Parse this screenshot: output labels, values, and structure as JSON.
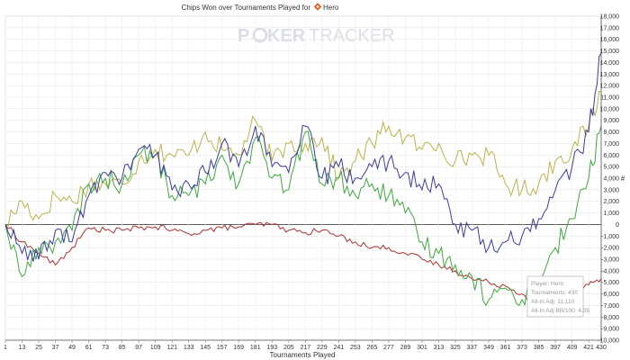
{
  "chart_data": {
    "type": "line",
    "title": "Chips Won over Tournaments Played for",
    "player_name": "Hero",
    "watermark": {
      "left": "P",
      "mid": "KER",
      "right": "TRACKER"
    },
    "xlabel": "Tournaments Played",
    "ylabel": "#",
    "xlim": [
      1,
      430
    ],
    "ylim": [
      -10000,
      18000
    ],
    "x_ticks": [
      1,
      13,
      25,
      37,
      49,
      61,
      73,
      85,
      97,
      109,
      121,
      133,
      145,
      157,
      169,
      181,
      193,
      205,
      217,
      229,
      241,
      253,
      265,
      277,
      289,
      301,
      313,
      325,
      337,
      349,
      361,
      373,
      385,
      397,
      409,
      421,
      430
    ],
    "y_ticks": [
      -10000,
      -9000,
      -8000,
      -7000,
      -6000,
      -5000,
      -4000,
      -3000,
      -2000,
      -1000,
      0,
      1000,
      2000,
      3000,
      4000,
      5000,
      6000,
      7000,
      8000,
      9000,
      10000,
      11000,
      12000,
      13000,
      14000,
      15000,
      16000,
      17000,
      18000
    ],
    "y_tick_labels": [
      "-10,000",
      "-9,000",
      "-8,000",
      "-7,000",
      "-6,000",
      "-5,000",
      "-4,000",
      "-3,000",
      "-2,000",
      "-1,000",
      "0",
      "1,000",
      "2,000",
      "3,000",
      "4,000",
      "5,000",
      "6,000",
      "7,000",
      "8,000",
      "9,000",
      "10,000",
      "11,000",
      "12,000",
      "13,000",
      "14,000",
      "15,000",
      "16,000",
      "17,000",
      "18,000"
    ],
    "grid": true,
    "series": [
      {
        "key": "blue",
        "color": "#3a3aa8",
        "x": [
          1,
          13,
          25,
          37,
          49,
          61,
          73,
          85,
          97,
          109,
          121,
          133,
          145,
          157,
          169,
          181,
          193,
          205,
          217,
          229,
          241,
          253,
          265,
          277,
          289,
          301,
          313,
          325,
          337,
          349,
          361,
          373,
          385,
          397,
          409,
          421,
          430
        ],
        "values": [
          0,
          -2500,
          -3000,
          -500,
          -1500,
          2500,
          4500,
          4000,
          6500,
          6000,
          3000,
          3500,
          4500,
          7000,
          5000,
          8500,
          5000,
          4500,
          8500,
          4000,
          5000,
          4000,
          5000,
          5500,
          4500,
          3000,
          3500,
          0,
          -500,
          -2000,
          -1500,
          -1000,
          500,
          3000,
          5000,
          8000,
          14800
        ]
      },
      {
        "key": "green",
        "color": "#3caa3c",
        "x": [
          1,
          13,
          25,
          37,
          49,
          61,
          73,
          85,
          97,
          109,
          121,
          133,
          145,
          157,
          169,
          181,
          193,
          205,
          217,
          229,
          241,
          253,
          265,
          277,
          289,
          301,
          313,
          325,
          337,
          349,
          361,
          373,
          385,
          397,
          409,
          421,
          430
        ],
        "values": [
          0,
          -4500,
          -2000,
          -1500,
          -500,
          3500,
          4000,
          3500,
          6000,
          6000,
          2500,
          2500,
          3500,
          6000,
          3500,
          7500,
          4000,
          3000,
          8000,
          3500,
          4000,
          2500,
          3500,
          2500,
          1000,
          -1500,
          -2500,
          -3500,
          -4500,
          -6500,
          -5500,
          -6500,
          -5000,
          -2000,
          500,
          4000,
          8500
        ]
      },
      {
        "key": "yellow",
        "color": "#bcb34a",
        "x": [
          1,
          13,
          25,
          37,
          49,
          61,
          73,
          85,
          97,
          109,
          121,
          133,
          145,
          157,
          169,
          181,
          193,
          205,
          217,
          229,
          241,
          253,
          265,
          277,
          289,
          301,
          313,
          325,
          337,
          349,
          361,
          373,
          385,
          397,
          409,
          421,
          430
        ],
        "values": [
          0,
          2000,
          500,
          2500,
          2000,
          3500,
          3500,
          3500,
          5500,
          6500,
          6000,
          6000,
          8000,
          6500,
          6000,
          9000,
          5500,
          7000,
          7000,
          7500,
          4000,
          5500,
          7000,
          8500,
          7500,
          6500,
          7000,
          5500,
          6000,
          6000,
          3500,
          3000,
          3500,
          5500,
          6500,
          8500,
          11500
        ]
      },
      {
        "key": "red",
        "color": "#b03030",
        "x": [
          1,
          13,
          25,
          37,
          49,
          61,
          73,
          85,
          97,
          109,
          121,
          133,
          145,
          157,
          169,
          181,
          193,
          205,
          217,
          229,
          241,
          253,
          265,
          277,
          289,
          301,
          313,
          325,
          337,
          349,
          361,
          373,
          385,
          397,
          409,
          421,
          430
        ],
        "values": [
          0,
          -1500,
          -2500,
          -3500,
          -2000,
          -300,
          -500,
          -500,
          -300,
          -200,
          -500,
          -800,
          -500,
          -300,
          -200,
          0,
          0,
          -500,
          -700,
          -500,
          -1000,
          -1500,
          -2000,
          -2000,
          -2500,
          -3000,
          -3500,
          -4000,
          -4700,
          -5000,
          -5300,
          -6000,
          -7000,
          -6500,
          -5800,
          -5200,
          -4700
        ]
      }
    ],
    "tooltip": [
      "Player: Hero",
      "Tournaments: 430",
      "All-In Adj: 11,110",
      "All-In Adj BB/100: 4.05"
    ]
  }
}
